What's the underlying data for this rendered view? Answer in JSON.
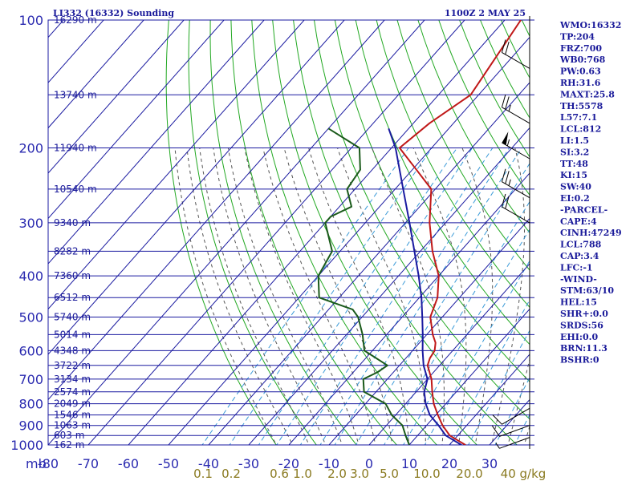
{
  "header": {
    "station_title": "LI332 (16332) Sounding",
    "time_stamp": "1100Z  2 MAY 25"
  },
  "chart_data": {
    "type": "line",
    "diagram": "skew-T log-p",
    "x_axis_unit_label": "mb",
    "temperature_ticks": [
      -80,
      -70,
      -60,
      -50,
      -40,
      -30,
      -20,
      -10,
      0,
      10,
      20,
      30
    ],
    "pressure_ticks": [
      100,
      200,
      300,
      400,
      500,
      600,
      700,
      800,
      900,
      1000
    ],
    "ylim": [
      1000,
      100
    ],
    "xlim": [
      -80,
      35
    ],
    "mixing_ratio_labels": [
      "0.1",
      "0.2",
      "0.6",
      "1.0",
      "2.0",
      "3.0",
      "5.0",
      "10.0",
      "20.0",
      "40 g/kg"
    ],
    "height_labels": [
      {
        "p": 1000,
        "text": "162 m"
      },
      {
        "p": 950,
        "text": "603 m"
      },
      {
        "p": 900,
        "text": "1063 m"
      },
      {
        "p": 850,
        "text": "1546 m"
      },
      {
        "p": 800,
        "text": "2049 m"
      },
      {
        "p": 750,
        "text": "2574 m"
      },
      {
        "p": 700,
        "text": "3134 m"
      },
      {
        "p": 650,
        "text": "3722 m"
      },
      {
        "p": 600,
        "text": "4348 m"
      },
      {
        "p": 550,
        "text": "5014 m"
      },
      {
        "p": 500,
        "text": "5740 m"
      },
      {
        "p": 450,
        "text": "6512 m"
      },
      {
        "p": 400,
        "text": "7360 m"
      },
      {
        "p": 350,
        "text": "8282 m"
      },
      {
        "p": 300,
        "text": "9340 m"
      },
      {
        "p": 250,
        "text": "10540 m"
      },
      {
        "p": 200,
        "text": "11940 m"
      },
      {
        "p": 150,
        "text": "13740 m"
      },
      {
        "p": 100,
        "text": "16290 m"
      }
    ],
    "series": [
      {
        "color": "#c01818",
        "points": [
          [
            1000,
            24
          ],
          [
            975,
            21
          ],
          [
            950,
            18
          ],
          [
            900,
            14
          ],
          [
            850,
            10.5
          ],
          [
            800,
            7
          ],
          [
            750,
            4
          ],
          [
            700,
            1
          ],
          [
            650,
            -3
          ],
          [
            625,
            -4
          ],
          [
            600,
            -4.5
          ],
          [
            575,
            -6
          ],
          [
            550,
            -8.5
          ],
          [
            500,
            -13
          ],
          [
            450,
            -15.5
          ],
          [
            400,
            -20
          ],
          [
            350,
            -27
          ],
          [
            300,
            -34
          ],
          [
            250,
            -41
          ],
          [
            225,
            -49
          ],
          [
            200,
            -58
          ],
          [
            175,
            -56
          ],
          [
            150,
            -52
          ],
          [
            100,
            -56
          ]
        ]
      },
      {
        "color": "#1a1aa0",
        "points": [
          [
            1000,
            23
          ],
          [
            975,
            20
          ],
          [
            950,
            17
          ],
          [
            900,
            13
          ],
          [
            850,
            8.5
          ],
          [
            800,
            5
          ],
          [
            750,
            2
          ],
          [
            700,
            0
          ],
          [
            650,
            -4
          ],
          [
            600,
            -7.5
          ],
          [
            550,
            -11
          ],
          [
            500,
            -15
          ],
          [
            450,
            -19.5
          ],
          [
            400,
            -25
          ],
          [
            350,
            -31.5
          ],
          [
            300,
            -39
          ],
          [
            250,
            -48
          ],
          [
            200,
            -59
          ],
          [
            180,
            -65
          ]
        ]
      },
      {
        "color": "#1a5a1a",
        "points": [
          [
            1000,
            10
          ],
          [
            950,
            7
          ],
          [
            900,
            4
          ],
          [
            850,
            -1
          ],
          [
            800,
            -5
          ],
          [
            750,
            -13
          ],
          [
            700,
            -16
          ],
          [
            675,
            -14
          ],
          [
            650,
            -13
          ],
          [
            600,
            -22
          ],
          [
            550,
            -26
          ],
          [
            500,
            -31
          ],
          [
            480,
            -34
          ],
          [
            450,
            -45
          ],
          [
            400,
            -50
          ],
          [
            350,
            -52
          ],
          [
            300,
            -60
          ],
          [
            290,
            -60
          ],
          [
            275,
            -57
          ],
          [
            250,
            -62
          ],
          [
            225,
            -63
          ],
          [
            200,
            -68
          ],
          [
            180,
            -80
          ]
        ]
      }
    ],
    "wind_barbs": [
      {
        "p": 130,
        "dir": 300,
        "spd": 20
      },
      {
        "p": 175,
        "dir": 300,
        "spd": 25
      },
      {
        "p": 212,
        "dir": 300,
        "spd": 55
      },
      {
        "p": 262,
        "dir": 300,
        "spd": 25
      },
      {
        "p": 300,
        "dir": 300,
        "spd": 20
      },
      {
        "p": 820,
        "dir": 240,
        "spd": 10
      },
      {
        "p": 900,
        "dir": 250,
        "spd": 10
      },
      {
        "p": 960,
        "dir": 250,
        "spd": 5
      }
    ]
  },
  "indices": {
    "lines": [
      "WMO:16332",
      "TP:204",
      "FRZ:700",
      "WB0:768",
      "PW:0.63",
      "RH:31.6",
      "MAXT:25.8",
      "TH:5578",
      "L57:7.1",
      "LCL:812",
      "LI:1.5",
      "SI:3.2",
      "TT:48",
      "KI:15",
      "SW:40",
      "EI:0.2",
      "-PARCEL-",
      "CAPE:4",
      "CINH:47249",
      "LCL:788",
      "CAP:3.4",
      "LFC:-1",
      "-WIND-",
      "STM:63/10",
      "HEL:15",
      "SHR+:0.0",
      "SRDS:56",
      "EHI:0.0",
      "BRN:11.3",
      "BSHR:0"
    ]
  },
  "colors": {
    "frame": "#1a1aa0",
    "isotherm": "#1a1aa0",
    "dry_adiabat": "#22a822",
    "moist_adiabat": "#555555",
    "mixing_ratio": "#3a9ad8"
  }
}
